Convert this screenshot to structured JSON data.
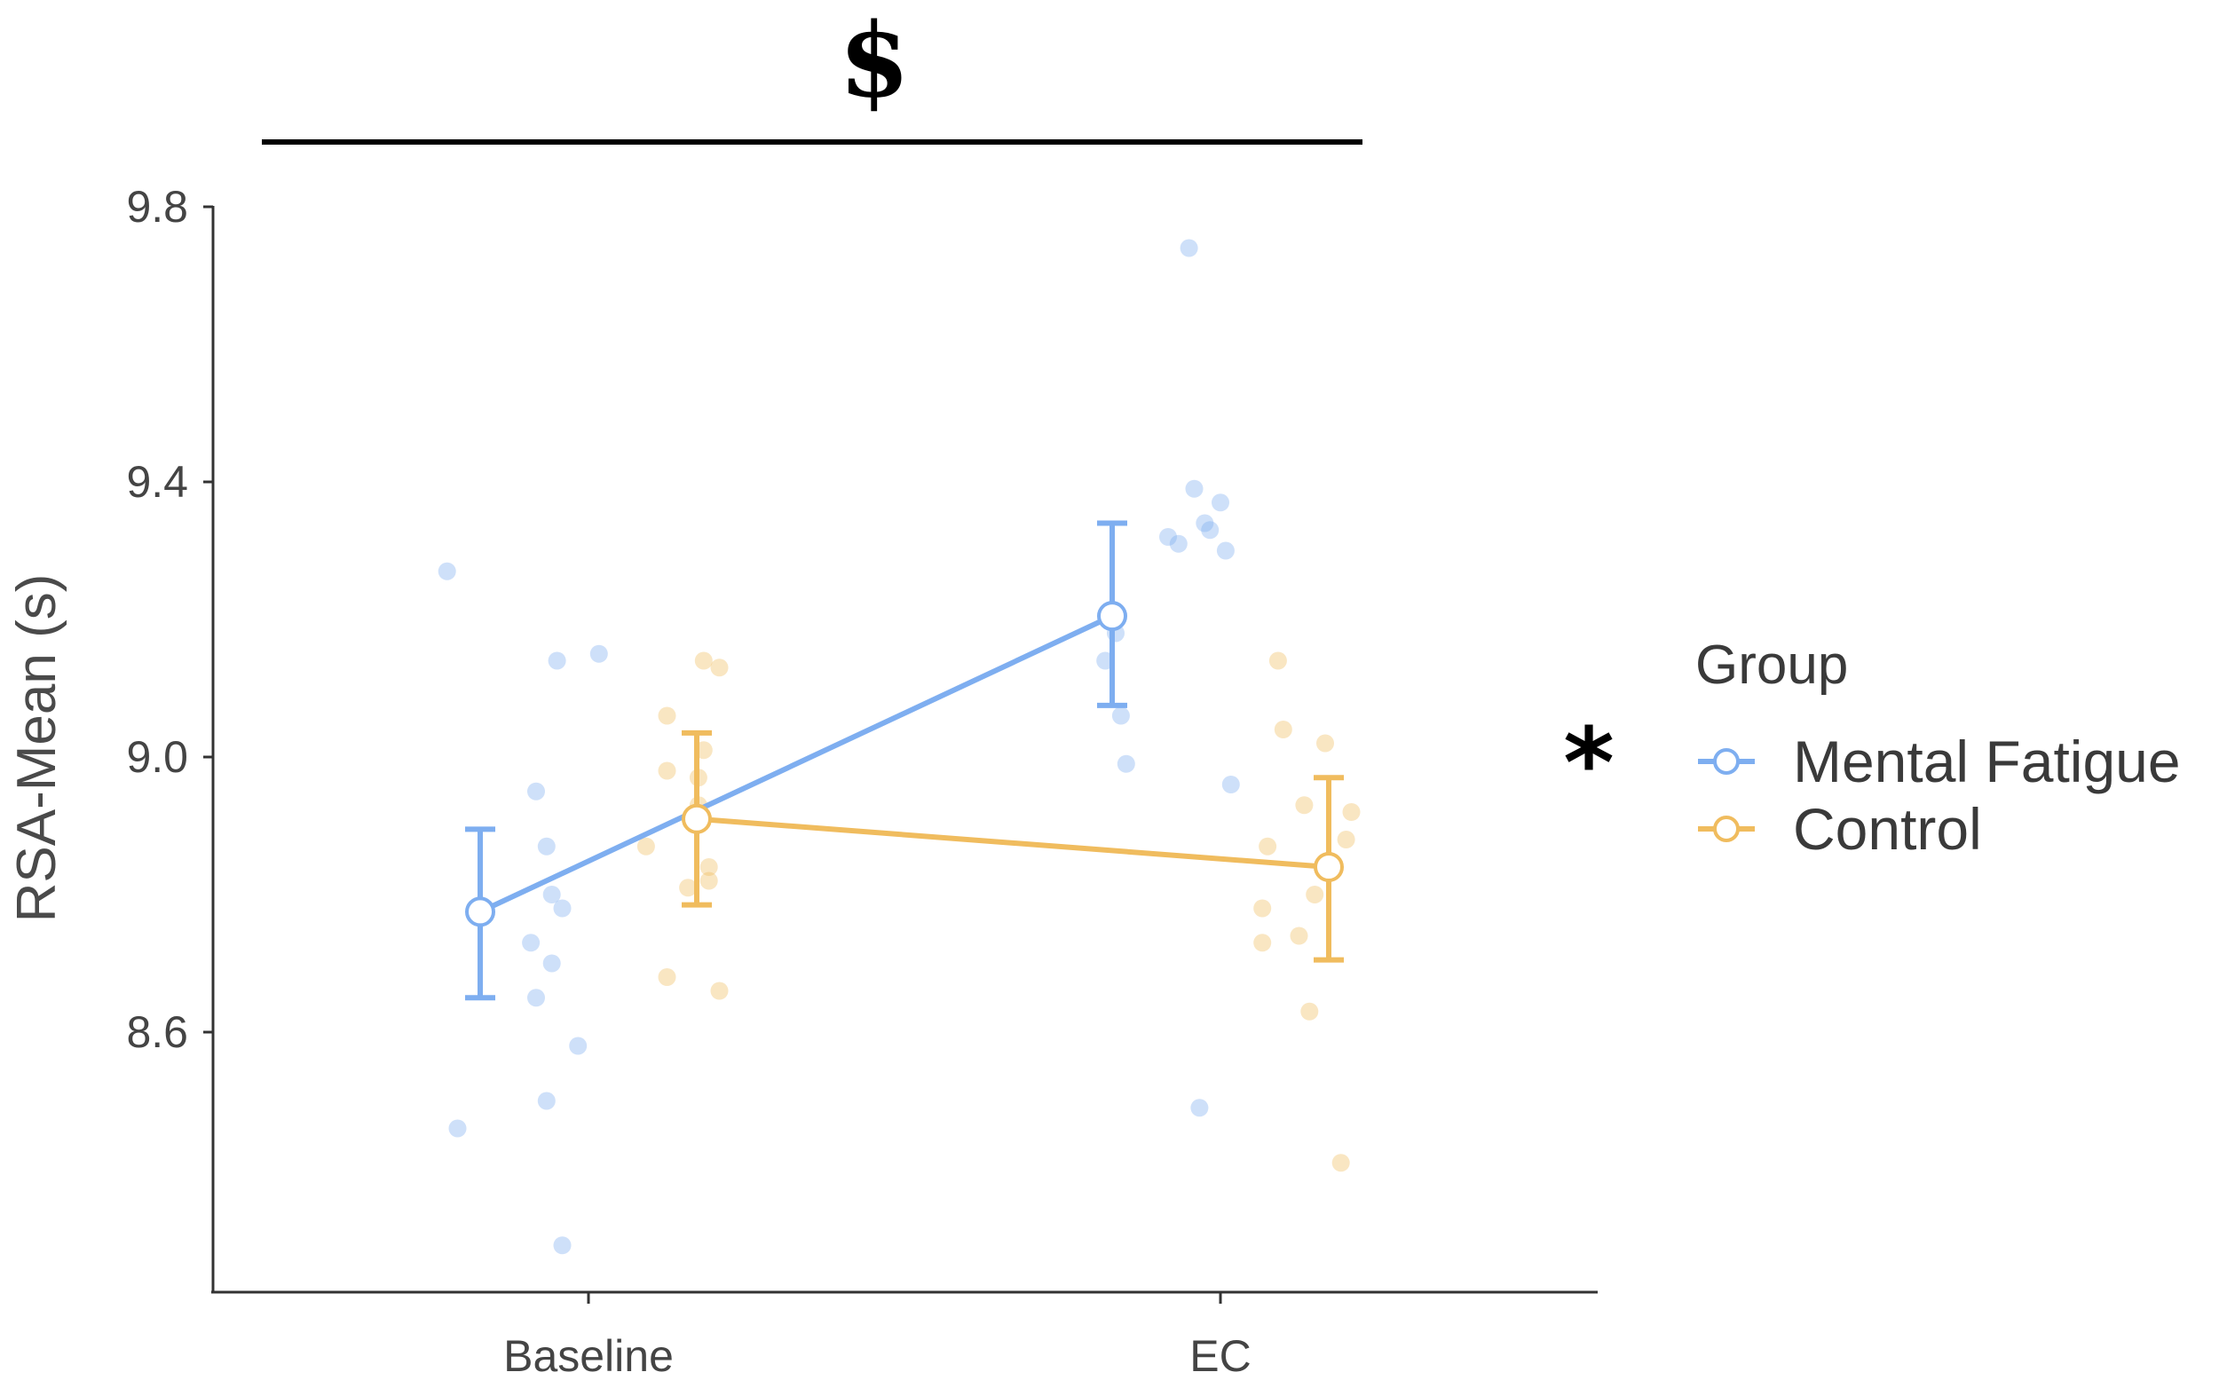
{
  "chart_data": {
    "type": "line",
    "title": "",
    "xlabel": "",
    "ylabel": "RSA-Mean (s)",
    "categories": [
      "Baseline",
      "EC"
    ],
    "ylim": [
      8.24,
      9.8
    ],
    "yticks": [
      "8.6",
      "9.0",
      "9.4",
      "9.8"
    ],
    "legend_title": "Group",
    "legend_placement": "right",
    "grid": false,
    "series": [
      {
        "name": "Mental Fatigue",
        "color": "#7EAEF0",
        "means": [
          8.775,
          9.205
        ],
        "error_low": [
          8.65,
          9.075
        ],
        "error_high": [
          8.895,
          9.34
        ],
        "points": [
          {
            "category": "Baseline",
            "offset": -0.27,
            "y": 9.27
          },
          {
            "category": "Baseline",
            "offset": -0.06,
            "y": 9.14
          },
          {
            "category": "Baseline",
            "offset": 0.02,
            "y": 9.15
          },
          {
            "category": "Baseline",
            "offset": -0.1,
            "y": 8.95
          },
          {
            "category": "Baseline",
            "offset": -0.08,
            "y": 8.87
          },
          {
            "category": "Baseline",
            "offset": -0.07,
            "y": 8.8
          },
          {
            "category": "Baseline",
            "offset": -0.05,
            "y": 8.78
          },
          {
            "category": "Baseline",
            "offset": -0.11,
            "y": 8.73
          },
          {
            "category": "Baseline",
            "offset": -0.07,
            "y": 8.7
          },
          {
            "category": "Baseline",
            "offset": -0.1,
            "y": 8.65
          },
          {
            "category": "Baseline",
            "offset": -0.02,
            "y": 8.58
          },
          {
            "category": "Baseline",
            "offset": -0.08,
            "y": 8.5
          },
          {
            "category": "Baseline",
            "offset": -0.25,
            "y": 8.46
          },
          {
            "category": "Baseline",
            "offset": -0.05,
            "y": 8.29
          },
          {
            "category": "EC",
            "offset": -0.06,
            "y": 9.74
          },
          {
            "category": "EC",
            "offset": -0.05,
            "y": 9.39
          },
          {
            "category": "EC",
            "offset": 0.0,
            "y": 9.37
          },
          {
            "category": "EC",
            "offset": -0.03,
            "y": 9.34
          },
          {
            "category": "EC",
            "offset": -0.02,
            "y": 9.33
          },
          {
            "category": "EC",
            "offset": -0.1,
            "y": 9.32
          },
          {
            "category": "EC",
            "offset": -0.08,
            "y": 9.31
          },
          {
            "category": "EC",
            "offset": 0.01,
            "y": 9.3
          },
          {
            "category": "EC",
            "offset": -0.2,
            "y": 9.18
          },
          {
            "category": "EC",
            "offset": -0.22,
            "y": 9.14
          },
          {
            "category": "EC",
            "offset": -0.19,
            "y": 9.06
          },
          {
            "category": "EC",
            "offset": -0.18,
            "y": 8.99
          },
          {
            "category": "EC",
            "offset": 0.02,
            "y": 8.96
          },
          {
            "category": "EC",
            "offset": -0.04,
            "y": 8.49
          }
        ]
      },
      {
        "name": "Control",
        "color": "#F0BC5E",
        "means": [
          8.91,
          8.84
        ],
        "error_low": [
          8.785,
          8.705
        ],
        "error_high": [
          9.035,
          8.97
        ],
        "points": [
          {
            "category": "Baseline",
            "offset": 0.22,
            "y": 9.14
          },
          {
            "category": "Baseline",
            "offset": 0.25,
            "y": 9.13
          },
          {
            "category": "Baseline",
            "offset": 0.15,
            "y": 9.06
          },
          {
            "category": "Baseline",
            "offset": 0.22,
            "y": 9.01
          },
          {
            "category": "Baseline",
            "offset": 0.15,
            "y": 8.98
          },
          {
            "category": "Baseline",
            "offset": 0.21,
            "y": 8.97
          },
          {
            "category": "Baseline",
            "offset": 0.21,
            "y": 8.93
          },
          {
            "category": "Baseline",
            "offset": 0.11,
            "y": 8.87
          },
          {
            "category": "Baseline",
            "offset": 0.23,
            "y": 8.84
          },
          {
            "category": "Baseline",
            "offset": 0.23,
            "y": 8.82
          },
          {
            "category": "Baseline",
            "offset": 0.19,
            "y": 8.81
          },
          {
            "category": "Baseline",
            "offset": 0.15,
            "y": 8.68
          },
          {
            "category": "Baseline",
            "offset": 0.25,
            "y": 8.66
          },
          {
            "category": "EC",
            "offset": 0.11,
            "y": 9.14
          },
          {
            "category": "EC",
            "offset": 0.12,
            "y": 9.04
          },
          {
            "category": "EC",
            "offset": 0.2,
            "y": 9.02
          },
          {
            "category": "EC",
            "offset": 0.16,
            "y": 8.93
          },
          {
            "category": "EC",
            "offset": 0.25,
            "y": 8.92
          },
          {
            "category": "EC",
            "offset": 0.24,
            "y": 8.88
          },
          {
            "category": "EC",
            "offset": 0.09,
            "y": 8.87
          },
          {
            "category": "EC",
            "offset": 0.18,
            "y": 8.8
          },
          {
            "category": "EC",
            "offset": 0.08,
            "y": 8.78
          },
          {
            "category": "EC",
            "offset": 0.15,
            "y": 8.74
          },
          {
            "category": "EC",
            "offset": 0.08,
            "y": 8.73
          },
          {
            "category": "EC",
            "offset": 0.17,
            "y": 8.63
          },
          {
            "category": "EC",
            "offset": 0.23,
            "y": 8.41
          }
        ]
      }
    ],
    "annotations": {
      "top_symbol": "$",
      "side_symbol": "*"
    }
  }
}
